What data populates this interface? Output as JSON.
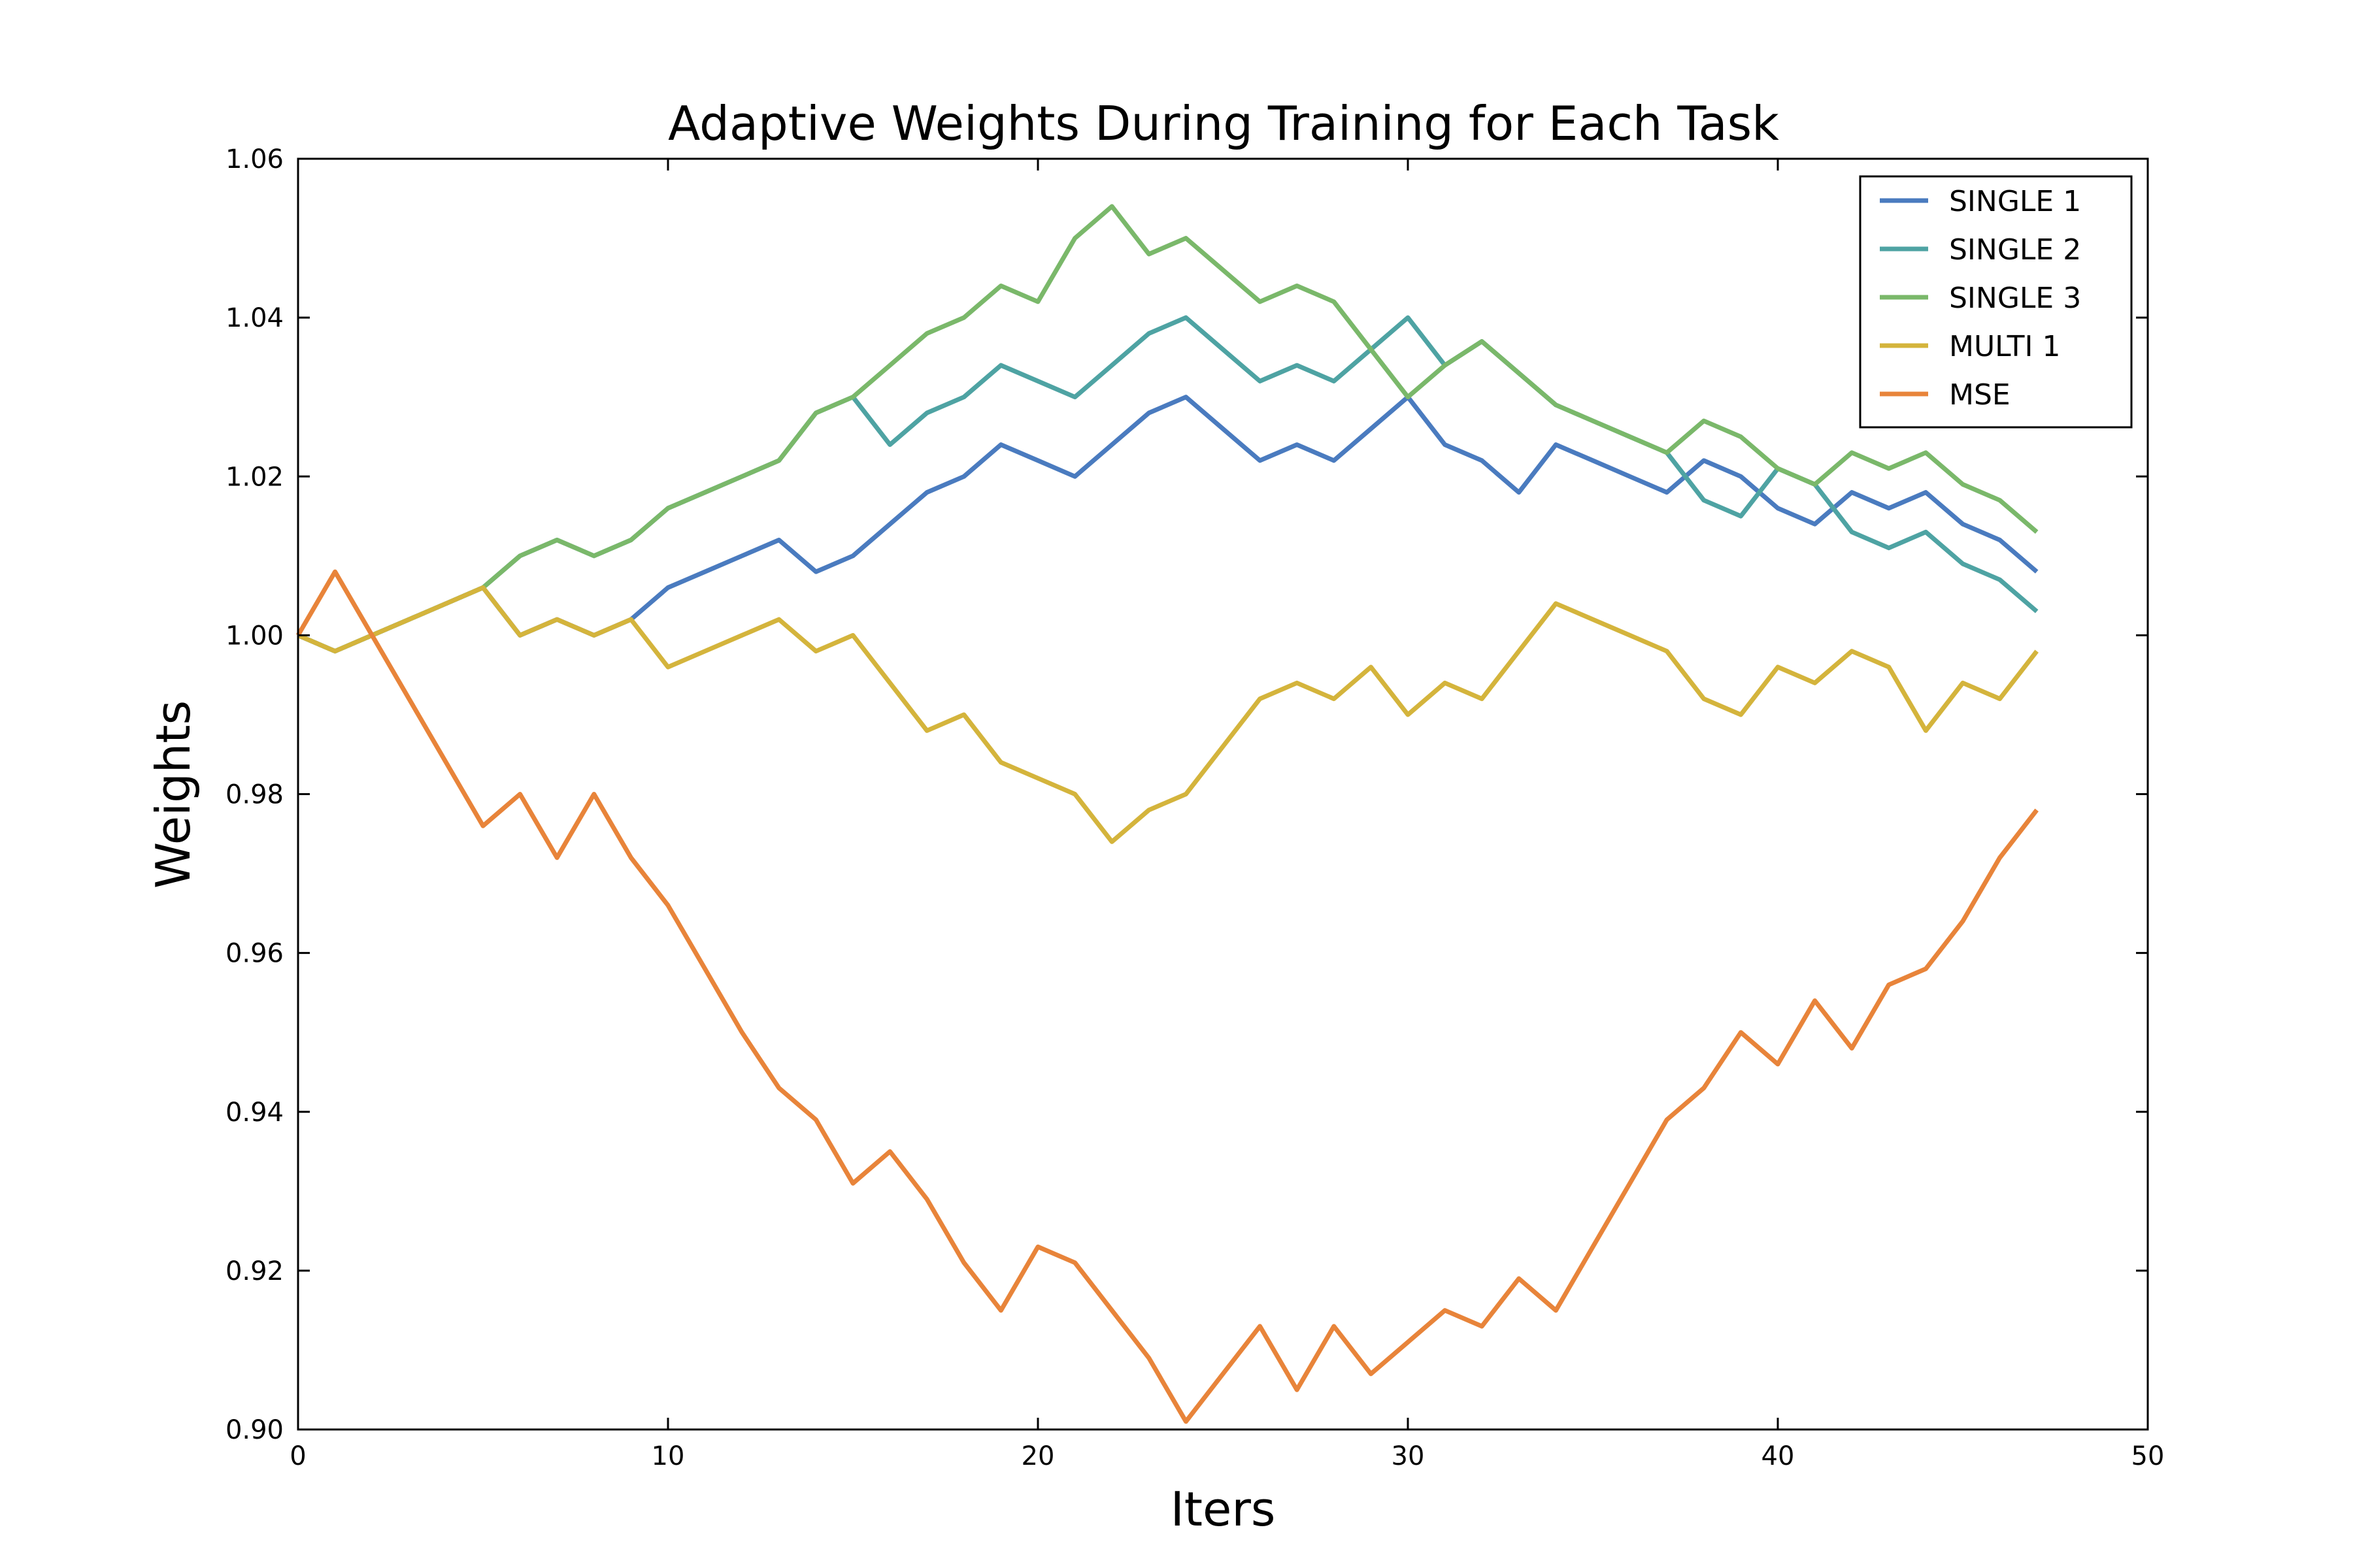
{
  "chart_data": {
    "type": "line",
    "title": "Adaptive Weights During Training for Each Task",
    "xlabel": "Iters",
    "ylabel": "Weights",
    "xlim": [
      0,
      50
    ],
    "ylim": [
      0.9,
      1.06
    ],
    "xticks": [
      0,
      10,
      20,
      30,
      40,
      50
    ],
    "xtick_labels": [
      "0",
      "10",
      "20",
      "30",
      "40",
      "50"
    ],
    "yticks": [
      0.9,
      0.92,
      0.94,
      0.96,
      0.98,
      1.0,
      1.02,
      1.04,
      1.06
    ],
    "ytick_labels": [
      "0.90",
      "0.92",
      "0.94",
      "0.96",
      "0.98",
      "1.00",
      "1.02",
      "1.04",
      "1.06"
    ],
    "grid": false,
    "legend_position": "top-right",
    "x": [
      0,
      1,
      2,
      3,
      4,
      5,
      6,
      7,
      8,
      9,
      10,
      11,
      12,
      13,
      14,
      15,
      16,
      17,
      18,
      19,
      20,
      21,
      22,
      23,
      24,
      25,
      26,
      27,
      28,
      29,
      30,
      31,
      32,
      33,
      34,
      35,
      36,
      37,
      38,
      39,
      40,
      41,
      42,
      43,
      44,
      45,
      46,
      47
    ],
    "series": [
      {
        "name": "SINGLE 1",
        "color": "#4a7bbf",
        "values": [
          1.0,
          0.998,
          1.0,
          1.002,
          1.004,
          1.006,
          1.0,
          1.002,
          1.0,
          1.002,
          1.006,
          1.008,
          1.01,
          1.012,
          1.008,
          1.01,
          1.014,
          1.018,
          1.02,
          1.024,
          1.022,
          1.02,
          1.024,
          1.028,
          1.03,
          1.026,
          1.022,
          1.024,
          1.022,
          1.026,
          1.03,
          1.024,
          1.022,
          1.018,
          1.024,
          1.022,
          1.02,
          1.018,
          1.022,
          1.02,
          1.016,
          1.014,
          1.018,
          1.016,
          1.018,
          1.014,
          1.012,
          1.008
        ]
      },
      {
        "name": "SINGLE 2",
        "color": "#4ea3a3",
        "values": [
          1.0,
          0.998,
          1.0,
          1.002,
          1.004,
          1.006,
          1.01,
          1.012,
          1.01,
          1.012,
          1.016,
          1.018,
          1.02,
          1.022,
          1.028,
          1.03,
          1.024,
          1.028,
          1.03,
          1.034,
          1.032,
          1.03,
          1.034,
          1.038,
          1.04,
          1.036,
          1.032,
          1.034,
          1.032,
          1.036,
          1.04,
          1.034,
          1.037,
          1.033,
          1.029,
          1.027,
          1.025,
          1.023,
          1.017,
          1.015,
          1.021,
          1.019,
          1.013,
          1.011,
          1.013,
          1.009,
          1.007,
          1.003
        ]
      },
      {
        "name": "SINGLE 3",
        "color": "#7ab86a",
        "values": [
          1.0,
          0.998,
          1.0,
          1.002,
          1.004,
          1.006,
          1.01,
          1.012,
          1.01,
          1.012,
          1.016,
          1.018,
          1.02,
          1.022,
          1.028,
          1.03,
          1.034,
          1.038,
          1.04,
          1.044,
          1.042,
          1.05,
          1.054,
          1.048,
          1.05,
          1.046,
          1.042,
          1.044,
          1.042,
          1.036,
          1.03,
          1.034,
          1.037,
          1.033,
          1.029,
          1.027,
          1.025,
          1.023,
          1.027,
          1.025,
          1.021,
          1.019,
          1.023,
          1.021,
          1.023,
          1.019,
          1.017,
          1.013
        ]
      },
      {
        "name": "MULTI 1",
        "color": "#d4b43c",
        "values": [
          1.0,
          0.998,
          1.0,
          1.002,
          1.004,
          1.006,
          1.0,
          1.002,
          1.0,
          1.002,
          0.996,
          0.998,
          1.0,
          1.002,
          0.998,
          1.0,
          0.994,
          0.988,
          0.99,
          0.984,
          0.982,
          0.98,
          0.974,
          0.978,
          0.98,
          0.986,
          0.992,
          0.994,
          0.992,
          0.996,
          0.99,
          0.994,
          0.992,
          0.998,
          1.004,
          1.002,
          1.0,
          0.998,
          0.992,
          0.99,
          0.996,
          0.994,
          0.998,
          0.996,
          0.988,
          0.994,
          0.992,
          0.998
        ]
      },
      {
        "name": "MSE",
        "color": "#e8843a",
        "values": [
          1.0,
          1.008,
          1.0,
          0.992,
          0.984,
          0.976,
          0.98,
          0.972,
          0.98,
          0.972,
          0.966,
          0.958,
          0.95,
          0.943,
          0.939,
          0.931,
          0.935,
          0.929,
          0.921,
          0.915,
          0.923,
          0.921,
          0.915,
          0.909,
          0.901,
          0.907,
          0.913,
          0.905,
          0.913,
          0.907,
          0.911,
          0.915,
          0.913,
          0.919,
          0.915,
          0.923,
          0.931,
          0.939,
          0.943,
          0.95,
          0.946,
          0.954,
          0.948,
          0.956,
          0.958,
          0.964,
          0.972,
          0.978
        ]
      }
    ]
  }
}
